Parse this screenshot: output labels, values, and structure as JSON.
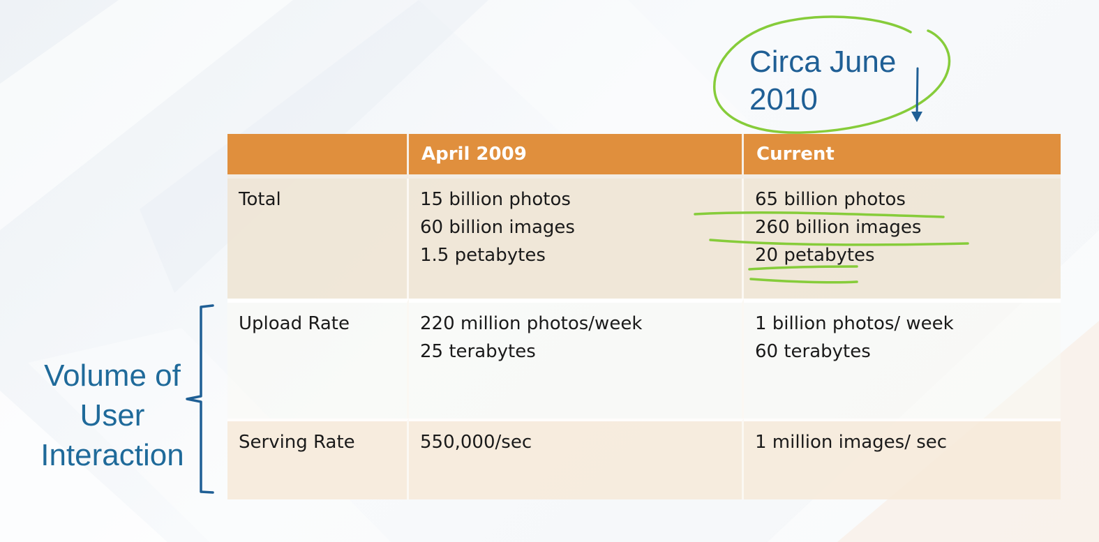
{
  "table": {
    "headers": [
      "",
      "April 2009",
      "Current"
    ],
    "rows": [
      {
        "label": "Total",
        "april_2009": [
          "15 billion photos",
          "60 billion images",
          "1.5 petabytes"
        ],
        "current": [
          "65 billion photos",
          "260 billion images",
          "20 petabytes"
        ]
      },
      {
        "label": "Upload Rate",
        "april_2009": [
          "220 million photos/week",
          "25 terabytes"
        ],
        "current": [
          "1 billion photos/ week",
          "60 terabytes"
        ]
      },
      {
        "label": "Serving Rate",
        "april_2009": [
          "550,000/sec"
        ],
        "current": [
          "1 million images/ sec"
        ]
      }
    ]
  },
  "annotations": {
    "circa": [
      "Circa June",
      "2010"
    ],
    "volume": [
      "Volume of",
      "User",
      "Interaction"
    ]
  },
  "colors": {
    "header": "#e08f3d",
    "annotation_text": "#1f5f95",
    "highlight": "#86cc3a"
  }
}
